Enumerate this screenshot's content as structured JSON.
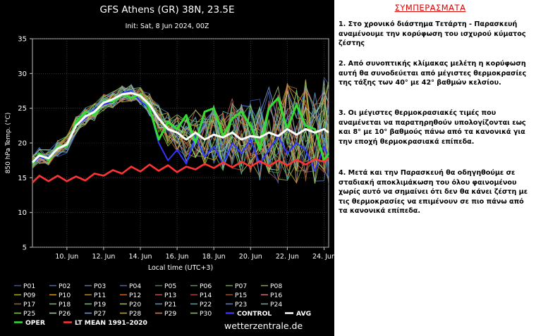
{
  "header": {
    "title": "GFS Athens (GR) 38N, 23.5E",
    "init": "Init: Sat, 8 Jun 2024, 00Z"
  },
  "brand": "wetterzentrale.de",
  "notes": {
    "heading": "ΣΥΜΠΕΡΑΣΜΑΤΑ",
    "items": [
      "1. Στο χρονικό διάστημα Τετάρτη - Παρασκευή αναμένουμε την κορύφωση του ισχυρού κύματος ζέστης",
      "2. Από συνοπτικής κλίμακας μελέτη η κορύφωση αυτή θα συνοδεύεται από μέγιστες θερμοκρασίες της τάξης των 40° με 42° βαθμών κελσίου.",
      "3. Οι μέγιστες θερμοκρασιακές τιμές που αναμένεται να παρατηρηθούν υπολογίζονται εως και 8° με 10° βαθμούς πάνω από τα κανονικά για την εποχή θερμοκρασιακά επίπεδα.",
      "4. Μετά και την Παρασκευή θα οδηγηθούμε σε σταδιακή αποκλιμάκωση του όλου φαινομένου χωρίς αυτό να σημαίνει ότι δεν θα κάνει ζέστη με τις θερμοκρασίες να επιμένουν σε πιο πάνω από τα κανονικά επίπεδα."
    ]
  },
  "chart_data": {
    "type": "line",
    "title": "GFS Athens (GR) 38N, 23.5E",
    "subtitle": "Init: Sat, 8 Jun 2024, 00Z",
    "xlabel": "Local time (UTC+3)",
    "ylabel": "850 hPa Temp. (°C)",
    "xlim": [
      8.125,
      24.25
    ],
    "ylim": [
      5,
      35
    ],
    "x_ticks": [
      10,
      12,
      14,
      16,
      18,
      20,
      22,
      24
    ],
    "x_tick_labels": [
      "10. Jun",
      "12. Jun",
      "14. Jun",
      "16. Jun",
      "18. Jun",
      "20. Jun",
      "22. Jun",
      "24. Jun"
    ],
    "y_ticks": [
      5,
      10,
      15,
      20,
      25,
      30,
      35
    ],
    "y_tick_labels": [
      "5",
      "10",
      "15",
      "20",
      "25",
      "30",
      "35"
    ],
    "grid": true,
    "legend_position": "bottom",
    "legend": [
      "P01",
      "P02",
      "P03",
      "P04",
      "P05",
      "P06",
      "P07",
      "P08",
      "P09",
      "P10",
      "P11",
      "P12",
      "P13",
      "P14",
      "P15",
      "P16",
      "P17",
      "P18",
      "P19",
      "P20",
      "P21",
      "P22",
      "P23",
      "P24",
      "P25",
      "P26",
      "P27",
      "P28",
      "P29",
      "P30",
      "CONTROL",
      "AVG",
      "OPER",
      "LT MEAN 1991–2020"
    ],
    "series": [
      {
        "name": "OPER",
        "color": "#33dd33",
        "x": [
          8.125,
          8.5,
          9,
          9.5,
          10,
          10.5,
          11,
          11.5,
          12,
          12.5,
          13,
          13.5,
          14,
          14.5,
          15,
          15.5,
          16,
          16.5,
          17,
          17.5,
          18,
          18.5,
          19,
          19.5,
          20,
          20.5,
          21,
          21.5,
          22,
          22.5,
          23,
          23.5,
          24,
          24.25
        ],
        "values": [
          17,
          18.5,
          17.5,
          19.5,
          19.5,
          23,
          24.5,
          24,
          26,
          26,
          27,
          26.5,
          27,
          25,
          20.5,
          23,
          22,
          24,
          20,
          24.5,
          25,
          21,
          23.5,
          24.5,
          22.5,
          19,
          25,
          26.5,
          22,
          25.5,
          22.5,
          22,
          17.5,
          18.5
        ]
      },
      {
        "name": "AVG",
        "color": "#ffffff",
        "x": [
          8.125,
          8.5,
          9,
          9.5,
          10,
          10.5,
          11,
          11.5,
          12,
          12.5,
          13,
          13.5,
          14,
          14.5,
          15,
          15.5,
          16,
          16.5,
          17,
          17.5,
          18,
          18.5,
          19,
          19.5,
          20,
          20.5,
          21,
          21.5,
          22,
          22.5,
          23,
          23.5,
          24,
          24.25
        ],
        "values": [
          17.2,
          18.2,
          17.8,
          19.2,
          19.8,
          22.5,
          23.8,
          24.5,
          25.8,
          26.3,
          27,
          27.2,
          26.8,
          25.5,
          23.5,
          22,
          21.5,
          20.5,
          21.5,
          20.5,
          21.2,
          20.8,
          21.5,
          20.5,
          21,
          20.8,
          21.5,
          21,
          22,
          21.2,
          22,
          21.5,
          22,
          21.5
        ]
      },
      {
        "name": "CONTROL",
        "color": "#3333ff",
        "x": [
          8.125,
          8.5,
          9,
          9.5,
          10,
          10.5,
          11,
          11.5,
          12,
          12.5,
          13,
          13.5,
          14,
          14.5,
          15,
          15.5,
          16,
          16.5,
          17,
          17.5,
          18,
          18.5,
          19,
          19.5,
          20,
          20.5,
          21,
          21.5,
          22,
          22.5,
          23,
          23.5,
          24,
          24.25
        ],
        "values": [
          17,
          18,
          17.5,
          19.2,
          19.8,
          22.5,
          23.5,
          24.8,
          25.5,
          26,
          27.2,
          27.5,
          26,
          25,
          20,
          17.5,
          19,
          17,
          21,
          18,
          19.5,
          17,
          20,
          18.5,
          20.5,
          17,
          19,
          21,
          18.5,
          20,
          19,
          16,
          19.5,
          18
        ]
      },
      {
        "name": "LT MEAN 1991–2020",
        "color": "#ff3333",
        "x": [
          8.125,
          8.5,
          9,
          9.5,
          10,
          10.5,
          11,
          11.5,
          12,
          12.5,
          13,
          13.5,
          14,
          14.5,
          15,
          15.5,
          16,
          16.5,
          17,
          17.5,
          18,
          18.5,
          19,
          19.5,
          20,
          20.5,
          21,
          21.5,
          22,
          22.5,
          23,
          23.5,
          24,
          24.25
        ],
        "values": [
          14.3,
          15.3,
          14.5,
          15.3,
          14.5,
          15.2,
          14.6,
          15.6,
          15.3,
          16.1,
          15.6,
          16.6,
          15.9,
          16.9,
          16,
          16.8,
          15.8,
          16.6,
          16.2,
          17,
          16.4,
          17.2,
          16.5,
          17.3,
          16.6,
          17.4,
          16.7,
          17.5,
          16.8,
          17.6,
          16.9,
          17.7,
          17.3,
          17.8
        ]
      }
    ],
    "colors": {
      "members": [
        "#3a55a8",
        "#4a66c0",
        "#5577aa",
        "#4466bb",
        "#448844",
        "#559955",
        "#66aa44",
        "#88aa33",
        "#aaaa22",
        "#cc9922",
        "#bb8833",
        "#cc6622",
        "#bb5555",
        "#aa4444",
        "#995533",
        "#cc7777",
        "#996633",
        "#88bb55",
        "#66cc77",
        "#99cc44",
        "#5599cc",
        "#44aaaa",
        "#5588dd",
        "#77aa99",
        "#88cc66",
        "#aaccaa",
        "#7799cc",
        "#bbaa55",
        "#cc8866",
        "#99bb77"
      ]
    }
  }
}
